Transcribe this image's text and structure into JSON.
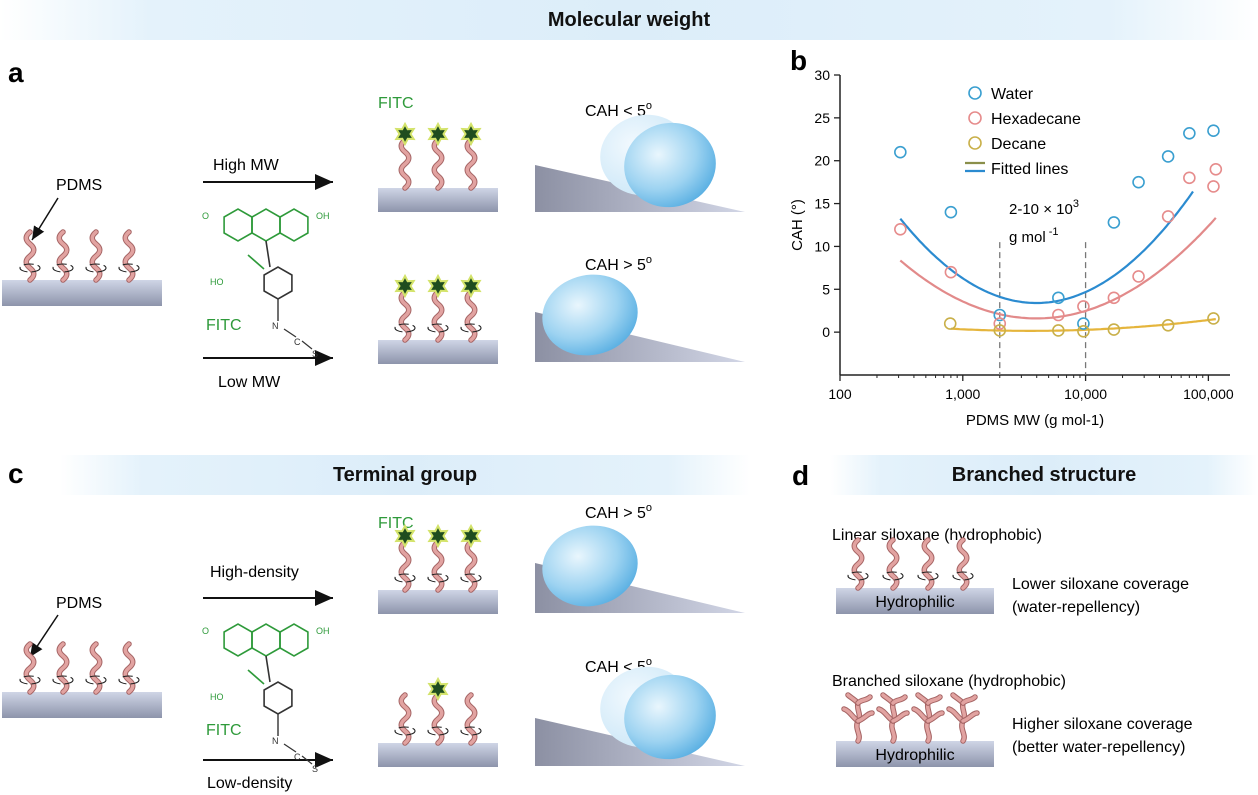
{
  "header": {
    "title": "Molecular weight"
  },
  "panel_a": {
    "letter": "a",
    "pdms_label": "PDMS",
    "high_label": "High MW",
    "low_label": "Low MW",
    "fitc_label": "FITC",
    "fitc_top": "FITC",
    "cah_top": "CAH < 5",
    "cah_bottom": "CAH > 5",
    "deg": "o"
  },
  "panel_b": {
    "letter": "b",
    "annot_line1": "2-10 × 10",
    "annot_sup": "3",
    "annot_line2": "g mol",
    "annot_sup2": "-1"
  },
  "chart_data": {
    "type": "scatter",
    "xlabel": "PDMS MW (g mol-1)",
    "ylabel": "CAH (°)",
    "xscale": "log",
    "xlim": [
      100,
      150000
    ],
    "ylim": [
      -5,
      30
    ],
    "xticks": [
      100,
      1000,
      10000,
      100000
    ],
    "xtick_labels": [
      "100",
      "1,000",
      "10,000",
      "100,000"
    ],
    "yticks": [
      0,
      5,
      10,
      15,
      20,
      25,
      30
    ],
    "vlines": [
      2000,
      10000
    ],
    "legend_position": "top",
    "series": [
      {
        "name": "Water",
        "color": "#3a9fd0",
        "points": [
          [
            310,
            21
          ],
          [
            800,
            14
          ],
          [
            2000,
            2
          ],
          [
            6000,
            4
          ],
          [
            9600,
            1
          ],
          [
            17000,
            12.8
          ],
          [
            27000,
            17.5
          ],
          [
            47000,
            20.5
          ],
          [
            70000,
            23.2
          ],
          [
            110000,
            23.5
          ]
        ]
      },
      {
        "name": "Hexadecane",
        "color": "#e68c8c",
        "points": [
          [
            310,
            12
          ],
          [
            800,
            7
          ],
          [
            2000,
            1
          ],
          [
            6000,
            2
          ],
          [
            9600,
            3
          ],
          [
            17000,
            4
          ],
          [
            27000,
            6.5
          ],
          [
            47000,
            13.5
          ],
          [
            70000,
            18
          ],
          [
            110000,
            17
          ],
          [
            115000,
            19
          ]
        ]
      },
      {
        "name": "Decane",
        "color": "#c9b04a",
        "points": [
          [
            790,
            1
          ],
          [
            2000,
            0.2
          ],
          [
            6000,
            0.2
          ],
          [
            9600,
            0.1
          ],
          [
            17000,
            0.3
          ],
          [
            47000,
            0.8
          ],
          [
            110000,
            1.6
          ]
        ]
      }
    ],
    "fitted_lines_label": "Fitted lines",
    "fits": [
      {
        "color": "#2b8bd0",
        "a": 3.4,
        "b": 8.0,
        "c": 3.6,
        "xmin": 310,
        "xmax": 75000
      },
      {
        "color": "#e28a8a",
        "a": 1.6,
        "b": 5.5,
        "c": 3.6,
        "xmin": 310,
        "xmax": 115000
      },
      {
        "color": "#e5b53c",
        "a": 0.15,
        "b": 0.6,
        "c": 3.55,
        "xmin": 800,
        "xmax": 115000
      }
    ]
  },
  "panel_c": {
    "letter": "c",
    "title": "Terminal group",
    "pdms_label": "PDMS",
    "high_label": "High-density",
    "low_label": "Low-density",
    "fitc_label": "FITC",
    "fitc_top": "FITC",
    "cah_top": "CAH > 5",
    "cah_bottom": "CAH < 5",
    "deg": "o"
  },
  "panel_d": {
    "letter": "d",
    "title": "Branched structure",
    "linear_title": "Linear siloxane (hydrophobic)",
    "linear_sub": "Hydrophilic",
    "linear_desc1": "Lower siloxane coverage",
    "linear_desc2": "(water-repellency)",
    "branched_title": "Branched siloxane (hydrophobic)",
    "branched_sub": "Hydrophilic",
    "branched_desc1": "Higher siloxane coverage",
    "branched_desc2": "(better water-repellency)"
  },
  "colors": {
    "chain": "#e2a3a1",
    "chain_stroke": "#a56464",
    "fitc_green": "#2e9a3a",
    "droplet": "#8cc9ee",
    "star": "#1f4d1f"
  }
}
